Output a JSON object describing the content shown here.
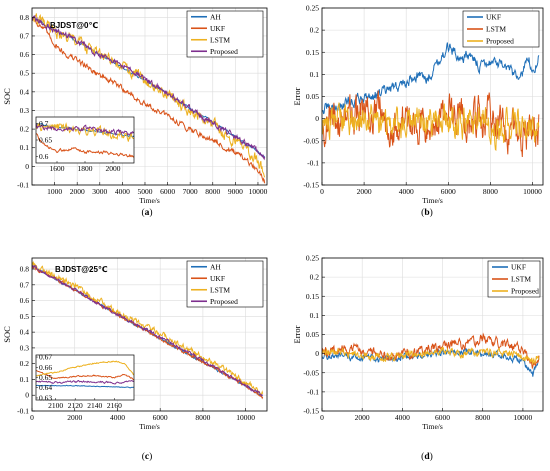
{
  "colors": {
    "blue": "#1f6fb8",
    "orange": "#d95319",
    "yellow": "#edb120",
    "purple": "#7e2f8e"
  },
  "chart_data": [
    {
      "id": "a",
      "type": "line",
      "caption": "(a)",
      "annotation": "BJDST@0℃",
      "xlabel": "Time/s",
      "ylabel": "SOC",
      "xlim": [
        0,
        10400
      ],
      "ylim": [
        -0.1,
        0.85
      ],
      "xticks": [
        1000,
        2000,
        3000,
        4000,
        5000,
        6000,
        7000,
        8000,
        9000,
        10000
      ],
      "yticks": [
        -0.1,
        0,
        0.1,
        0.2,
        0.3,
        0.4,
        0.5,
        0.6,
        0.7,
        0.8
      ],
      "grid": true,
      "legend_position": "top-right",
      "series": [
        {
          "name": "AH",
          "color": "blue",
          "x": [
            0,
            1000,
            2000,
            3000,
            4000,
            5000,
            6000,
            7000,
            8000,
            9000,
            10000,
            10300
          ],
          "y": [
            0.8,
            0.73,
            0.67,
            0.6,
            0.53,
            0.46,
            0.39,
            0.31,
            0.24,
            0.16,
            0.08,
            0.05
          ],
          "noise": 0.005
        },
        {
          "name": "UKF",
          "color": "orange",
          "x": [
            0,
            500,
            1000,
            1500,
            2000,
            3000,
            4000,
            5000,
            6000,
            7000,
            8000,
            9000,
            10000,
            10300
          ],
          "y": [
            0.8,
            0.74,
            0.66,
            0.6,
            0.57,
            0.49,
            0.42,
            0.33,
            0.27,
            0.2,
            0.14,
            0.07,
            -0.02,
            -0.08
          ],
          "noise": 0.012
        },
        {
          "name": "LSTM",
          "color": "yellow",
          "x": [
            0,
            1000,
            2000,
            3000,
            4000,
            5000,
            6000,
            7000,
            8000,
            9000,
            10000,
            10300
          ],
          "y": [
            0.8,
            0.72,
            0.67,
            0.6,
            0.53,
            0.47,
            0.38,
            0.3,
            0.22,
            0.14,
            0.03,
            -0.05
          ],
          "noise": 0.025
        },
        {
          "name": "Proposed",
          "color": "purple",
          "x": [
            0,
            1000,
            2000,
            3000,
            4000,
            5000,
            6000,
            7000,
            8000,
            9000,
            10000,
            10300
          ],
          "y": [
            0.8,
            0.73,
            0.68,
            0.6,
            0.54,
            0.47,
            0.39,
            0.31,
            0.23,
            0.16,
            0.08,
            0.05
          ],
          "noise": 0.012
        }
      ],
      "inset": {
        "xlim": [
          1450,
          2150
        ],
        "ylim": [
          0.58,
          0.72
        ],
        "xticks": [
          1600,
          1800,
          2000
        ],
        "yticks": [
          0.6,
          0.65,
          0.7
        ],
        "series": [
          {
            "color": "blue",
            "x": [
              1450,
              1600,
              1800,
              2000,
              2150
            ],
            "y": [
              0.7,
              0.69,
              0.68,
              0.67,
              0.66
            ],
            "noise": 0.002
          },
          {
            "color": "orange",
            "x": [
              1450,
              1500,
              1600,
              1700,
              1800,
              2000,
              2150
            ],
            "y": [
              0.67,
              0.635,
              0.615,
              0.625,
              0.615,
              0.61,
              0.6
            ],
            "noise": 0.004
          },
          {
            "color": "yellow",
            "x": [
              1450,
              1600,
              1800,
              2000,
              2150
            ],
            "y": [
              0.69,
              0.69,
              0.68,
              0.67,
              0.66
            ],
            "noise": 0.012
          },
          {
            "color": "purple",
            "x": [
              1450,
              1600,
              1800,
              2000,
              2150
            ],
            "y": [
              0.69,
              0.685,
              0.685,
              0.675,
              0.67
            ],
            "noise": 0.006
          }
        ]
      }
    },
    {
      "id": "b",
      "type": "line",
      "caption": "(b)",
      "xlabel": "Time/s",
      "ylabel": "Error",
      "xlim": [
        0,
        10500
      ],
      "ylim": [
        -0.15,
        0.25
      ],
      "xticks": [
        0,
        2000,
        4000,
        6000,
        8000,
        10000
      ],
      "yticks": [
        -0.15,
        -0.1,
        -0.05,
        0,
        0.05,
        0.1,
        0.15,
        0.2,
        0.25
      ],
      "grid": true,
      "legend_position": "top-right",
      "series": [
        {
          "name": "UKF",
          "color": "blue",
          "x": [
            0,
            1000,
            2000,
            3000,
            4000,
            4500,
            5000,
            5500,
            6000,
            6500,
            7000,
            7500,
            8000,
            8500,
            9000,
            9500,
            9800,
            10000,
            10300
          ],
          "y": [
            0.02,
            0.03,
            0.05,
            0.06,
            0.08,
            0.1,
            0.09,
            0.13,
            0.16,
            0.14,
            0.14,
            0.12,
            0.13,
            0.12,
            0.1,
            0.09,
            0.15,
            0.1,
            0.14
          ],
          "noise": 0.01
        },
        {
          "name": "LSTM",
          "color": "orange",
          "x": [
            0,
            1000,
            2000,
            3000,
            4000,
            5000,
            6000,
            7000,
            8000,
            9000,
            10000,
            10300
          ],
          "y": [
            -0.01,
            0.0,
            0.01,
            0.0,
            -0.01,
            0.0,
            0.01,
            0.0,
            0.0,
            -0.03,
            -0.04,
            -0.02
          ],
          "noise": 0.035
        },
        {
          "name": "Proposed",
          "color": "yellow",
          "x": [
            0,
            1000,
            2000,
            3000,
            4000,
            5000,
            6000,
            7000,
            8000,
            9000,
            10000,
            10300
          ],
          "y": [
            -0.01,
            0.0,
            0.0,
            -0.01,
            -0.01,
            -0.01,
            0.0,
            -0.01,
            -0.02,
            -0.02,
            -0.03,
            -0.02
          ],
          "noise": 0.028
        }
      ]
    },
    {
      "id": "c",
      "type": "line",
      "caption": "(c)",
      "annotation": "BJDST@25℃",
      "xlabel": "Time/s",
      "ylabel": "SOC",
      "xlim": [
        0,
        11000
      ],
      "ylim": [
        -0.1,
        0.87
      ],
      "xticks": [
        0,
        2000,
        4000,
        6000,
        8000,
        10000
      ],
      "yticks": [
        -0.1,
        0,
        0.1,
        0.2,
        0.3,
        0.4,
        0.5,
        0.6,
        0.7,
        0.8
      ],
      "grid": true,
      "legend_position": "top-right",
      "series": [
        {
          "name": "AH",
          "color": "blue",
          "x": [
            0,
            2000,
            4000,
            6000,
            8000,
            10000,
            10800
          ],
          "y": [
            0.82,
            0.67,
            0.51,
            0.36,
            0.21,
            0.06,
            0.0
          ],
          "noise": 0.006
        },
        {
          "name": "UKF",
          "color": "orange",
          "x": [
            0,
            2000,
            4000,
            6000,
            8000,
            10000,
            10800
          ],
          "y": [
            0.82,
            0.67,
            0.51,
            0.36,
            0.21,
            0.06,
            -0.01
          ],
          "noise": 0.008
        },
        {
          "name": "LSTM",
          "color": "yellow",
          "x": [
            0,
            2000,
            4000,
            6000,
            8000,
            10000,
            10800
          ],
          "y": [
            0.83,
            0.69,
            0.53,
            0.39,
            0.24,
            0.08,
            0.01
          ],
          "noise": 0.015
        },
        {
          "name": "Proposed",
          "color": "purple",
          "x": [
            0,
            2000,
            4000,
            6000,
            8000,
            10000,
            10800
          ],
          "y": [
            0.82,
            0.67,
            0.51,
            0.37,
            0.22,
            0.06,
            0.0
          ],
          "noise": 0.008
        }
      ],
      "inset": {
        "xlim": [
          2080,
          2180
        ],
        "ylim": [
          0.628,
          0.672
        ],
        "xticks": [
          2100,
          2120,
          2140,
          2160
        ],
        "yticks": [
          0.63,
          0.64,
          0.65,
          0.66,
          0.67
        ],
        "series": [
          {
            "color": "blue",
            "x": [
              2080,
              2120,
              2160,
              2180
            ],
            "y": [
              0.642,
              0.642,
              0.641,
              0.64
            ],
            "noise": 0.0003
          },
          {
            "color": "orange",
            "x": [
              2080,
              2090,
              2100,
              2120,
              2140,
              2160,
              2170,
              2180
            ],
            "y": [
              0.657,
              0.653,
              0.649,
              0.651,
              0.652,
              0.65,
              0.653,
              0.648
            ],
            "noise": 0.0005
          },
          {
            "color": "yellow",
            "x": [
              2080,
              2100,
              2120,
              2140,
              2160,
              2170,
              2180
            ],
            "y": [
              0.652,
              0.655,
              0.66,
              0.664,
              0.666,
              0.664,
              0.652
            ],
            "noise": 0.0005
          },
          {
            "color": "purple",
            "x": [
              2080,
              2100,
              2120,
              2140,
              2160,
              2180
            ],
            "y": [
              0.646,
              0.645,
              0.646,
              0.646,
              0.645,
              0.646
            ],
            "noise": 0.0008
          }
        ]
      }
    },
    {
      "id": "d",
      "type": "line",
      "caption": "(d)",
      "xlabel": "Time/s",
      "ylabel": "Error",
      "xlim": [
        0,
        11000
      ],
      "ylim": [
        -0.15,
        0.25
      ],
      "xticks": [
        0,
        2000,
        4000,
        6000,
        8000,
        10000
      ],
      "yticks": [
        -0.15,
        -0.1,
        -0.05,
        0,
        0.05,
        0.1,
        0.15,
        0.2,
        0.25
      ],
      "grid": true,
      "legend_position": "top-right",
      "series": [
        {
          "name": "UKF",
          "color": "blue",
          "x": [
            0,
            1000,
            2000,
            3000,
            4000,
            5000,
            6000,
            7000,
            8000,
            9000,
            10000,
            10500,
            10800
          ],
          "y": [
            -0.005,
            -0.01,
            -0.01,
            -0.015,
            -0.01,
            -0.005,
            0.0,
            0.005,
            0.0,
            -0.005,
            -0.02,
            -0.06,
            -0.01
          ],
          "noise": 0.007
        },
        {
          "name": "LSTM",
          "color": "orange",
          "x": [
            0,
            1000,
            2000,
            3000,
            4000,
            5000,
            6000,
            7000,
            8000,
            9000,
            10000,
            10500,
            10800
          ],
          "y": [
            0.005,
            0.01,
            0.01,
            0.0,
            -0.005,
            0.01,
            0.02,
            0.025,
            0.04,
            0.025,
            0.01,
            -0.03,
            -0.005
          ],
          "noise": 0.01
        },
        {
          "name": "Proposed",
          "color": "yellow",
          "x": [
            0,
            1000,
            2000,
            3000,
            4000,
            5000,
            6000,
            7000,
            8000,
            9000,
            10000,
            10500,
            10800
          ],
          "y": [
            0.0,
            0.005,
            -0.005,
            -0.01,
            -0.005,
            0.0,
            0.01,
            0.0,
            0.005,
            0.0,
            -0.005,
            -0.02,
            -0.01
          ],
          "noise": 0.008
        }
      ]
    }
  ]
}
